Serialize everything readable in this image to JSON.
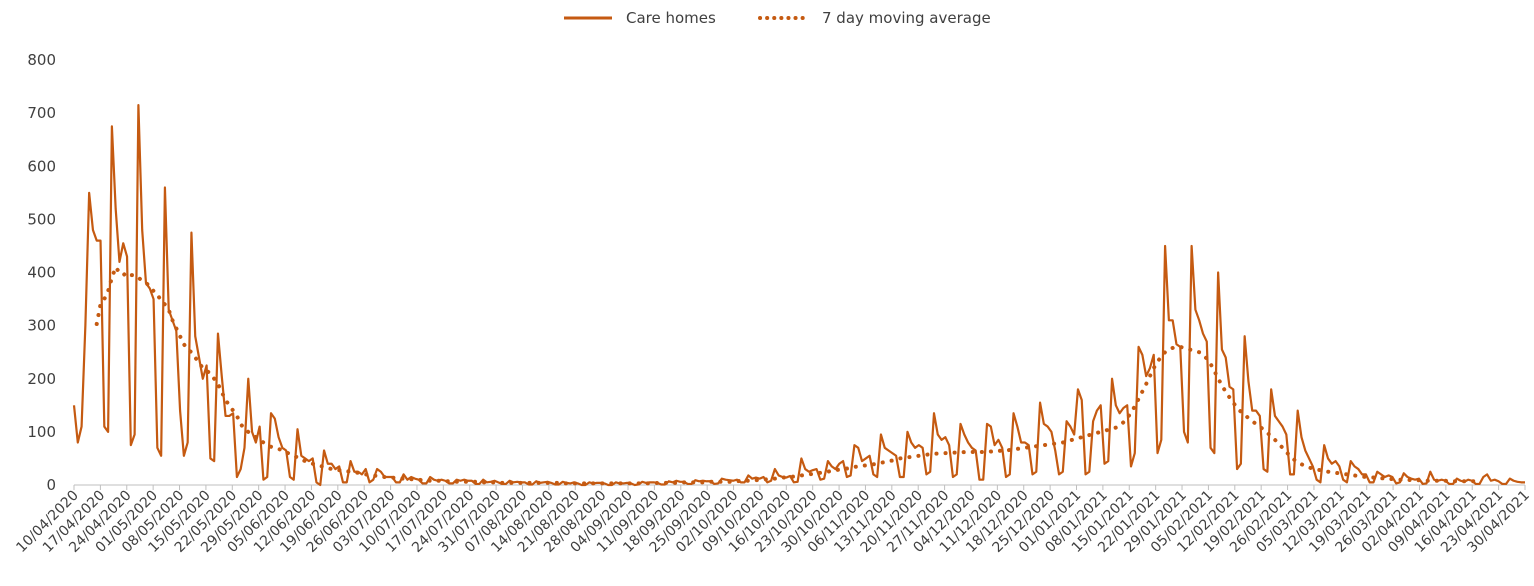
{
  "chart_data": {
    "type": "line",
    "title": "",
    "xlabel": "",
    "ylabel": "",
    "ylim": [
      0,
      800
    ],
    "y_ticks": [
      "0",
      "100",
      "200",
      "300",
      "400",
      "500",
      "600",
      "700",
      "800"
    ],
    "grid": false,
    "legend_placement": "top-center",
    "color": "#C55A11",
    "start_date": "10/04/2020",
    "end_date": "30/04/2021",
    "x_tick_labels": [
      "10/04/2020",
      "17/04/2020",
      "24/04/2020",
      "01/05/2020",
      "08/05/2020",
      "15/05/2020",
      "22/05/2020",
      "29/05/2020",
      "05/06/2020",
      "12/06/2020",
      "19/06/2020",
      "26/06/2020",
      "03/07/2020",
      "10/07/2020",
      "17/07/2020",
      "24/07/2020",
      "31/07/2020",
      "07/08/2020",
      "14/08/2020",
      "21/08/2020",
      "28/08/2020",
      "04/09/2020",
      "11/09/2020",
      "18/09/2020",
      "25/09/2020",
      "02/10/2020",
      "09/10/2020",
      "16/10/2020",
      "23/10/2020",
      "30/10/2020",
      "06/11/2020",
      "13/11/2020",
      "20/11/2020",
      "27/11/2020",
      "04/12/2020",
      "11/12/2020",
      "18/12/2020",
      "25/12/2020",
      "01/01/2021",
      "08/01/2021",
      "15/01/2021",
      "22/01/2021",
      "29/01/2021",
      "05/02/2021",
      "12/02/2021",
      "19/02/2021",
      "26/02/2021",
      "05/03/2021",
      "12/03/2021",
      "19/03/2021",
      "26/03/2021",
      "02/04/2021",
      "09/04/2021",
      "16/04/2021",
      "23/04/2021",
      "30/04/2021"
    ],
    "series": [
      {
        "name": "Care homes",
        "style": "solid",
        "values": [
          150,
          80,
          110,
          300,
          550,
          480,
          460,
          460,
          110,
          100,
          675,
          520,
          420,
          455,
          430,
          75,
          95,
          715,
          480,
          380,
          370,
          350,
          70,
          55,
          560,
          330,
          310,
          290,
          140,
          55,
          80,
          475,
          280,
          240,
          200,
          225,
          50,
          45,
          285,
          205,
          130,
          130,
          135,
          15,
          30,
          70,
          200,
          100,
          80,
          110,
          10,
          15,
          135,
          125,
          90,
          70,
          65,
          15,
          10,
          105,
          55,
          50,
          45,
          50,
          5,
          0,
          65,
          40,
          40,
          30,
          35,
          5,
          5,
          45,
          25,
          25,
          20,
          30,
          5,
          10,
          30,
          25,
          15,
          15,
          15,
          5,
          5,
          20,
          10,
          15,
          12,
          10,
          3,
          3,
          15,
          10,
          8,
          10,
          8,
          3,
          3,
          10,
          8,
          10,
          8,
          8,
          2,
          2,
          10,
          5,
          6,
          8,
          5,
          2,
          2,
          8,
          5,
          6,
          5,
          5,
          1,
          1,
          7,
          4,
          5,
          6,
          4,
          1,
          1,
          6,
          4,
          3,
          5,
          3,
          0,
          0,
          5,
          3,
          4,
          4,
          3,
          0,
          0,
          5,
          3,
          3,
          4,
          3,
          0,
          1,
          6,
          4,
          5,
          5,
          4,
          1,
          1,
          7,
          5,
          8,
          6,
          6,
          2,
          2,
          9,
          7,
          8,
          7,
          7,
          2,
          3,
          12,
          10,
          9,
          8,
          10,
          5,
          5,
          18,
          12,
          14,
          12,
          15,
          5,
          8,
          30,
          18,
          15,
          14,
          17,
          5,
          6,
          50,
          30,
          25,
          28,
          30,
          10,
          12,
          45,
          35,
          30,
          40,
          45,
          15,
          18,
          75,
          70,
          45,
          50,
          55,
          20,
          15,
          95,
          70,
          65,
          60,
          55,
          15,
          15,
          100,
          80,
          70,
          75,
          70,
          20,
          25,
          135,
          95,
          85,
          90,
          75,
          15,
          20,
          115,
          95,
          80,
          70,
          65,
          10,
          10,
          115,
          110,
          75,
          85,
          70,
          15,
          20,
          135,
          110,
          80,
          80,
          75,
          20,
          25,
          155,
          115,
          110,
          100,
          65,
          20,
          25,
          120,
          110,
          95,
          180,
          160,
          20,
          25,
          120,
          140,
          150,
          40,
          45,
          200,
          150,
          135,
          145,
          150,
          35,
          60,
          260,
          245,
          205,
          220,
          245,
          60,
          85,
          450,
          310,
          310,
          265,
          260,
          100,
          80,
          450,
          330,
          310,
          285,
          270,
          70,
          60,
          400,
          255,
          240,
          185,
          180,
          30,
          40,
          280,
          195,
          140,
          140,
          130,
          30,
          25,
          180,
          130,
          120,
          110,
          95,
          20,
          20,
          140,
          90,
          65,
          50,
          35,
          10,
          5,
          75,
          50,
          40,
          45,
          35,
          10,
          5,
          45,
          35,
          30,
          20,
          20,
          5,
          5,
          25,
          20,
          15,
          18,
          15,
          3,
          5,
          22,
          15,
          12,
          10,
          12,
          2,
          3,
          25,
          10,
          8,
          10,
          8,
          2,
          2,
          12,
          8,
          6,
          10,
          8,
          2,
          2,
          15,
          20,
          8,
          10,
          7,
          2,
          2,
          12,
          8,
          6,
          5,
          5
        ]
      },
      {
        "name": "7 day moving average",
        "style": "dotted",
        "values": [
          null,
          null,
          null,
          null,
          null,
          null,
          303,
          340,
          350,
          365,
          390,
          410,
          400,
          395,
          400,
          395,
          395,
          390,
          385,
          380,
          375,
          365,
          360,
          345,
          340,
          330,
          310,
          295,
          280,
          265,
          255,
          250,
          240,
          230,
          220,
          215,
          210,
          200,
          190,
          175,
          160,
          150,
          140,
          130,
          115,
          105,
          100,
          95,
          90,
          85,
          80,
          75,
          72,
          70,
          68,
          65,
          62,
          58,
          55,
          52,
          48,
          45,
          42,
          40,
          38,
          36,
          34,
          32,
          30,
          30,
          28,
          27,
          26,
          25,
          24,
          23,
          22,
          20,
          19,
          18,
          17,
          16,
          15,
          14,
          14,
          13,
          12,
          12,
          11,
          11,
          10,
          10,
          9,
          9,
          8,
          8,
          8,
          8,
          7,
          7,
          7,
          6,
          6,
          6,
          6,
          6,
          6,
          5,
          5,
          5,
          5,
          5,
          5,
          4,
          4,
          4,
          4,
          4,
          4,
          4,
          4,
          4,
          4,
          4,
          4,
          4,
          4,
          4,
          4,
          3,
          3,
          3,
          3,
          3,
          3,
          3,
          3,
          3,
          3,
          3,
          3,
          3,
          3,
          3,
          3,
          3,
          3,
          3,
          3,
          3,
          3,
          3,
          3,
          3,
          4,
          4,
          4,
          4,
          4,
          4,
          4,
          5,
          5,
          5,
          5,
          5,
          5,
          5,
          6,
          6,
          6,
          6,
          6,
          6,
          7,
          7,
          8,
          8,
          8,
          9,
          9,
          10,
          10,
          11,
          12,
          12,
          13,
          14,
          14,
          15,
          16,
          17,
          18,
          19,
          20,
          21,
          22,
          23,
          24,
          25,
          27,
          28,
          29,
          30,
          31,
          32,
          34,
          35,
          36,
          37,
          38,
          39,
          40,
          42,
          43,
          45,
          46,
          48,
          50,
          51,
          52,
          53,
          54,
          55,
          56,
          57,
          58,
          59,
          59,
          60,
          60,
          60,
          61,
          61,
          61,
          62,
          62,
          62,
          62,
          62,
          62,
          63,
          63,
          64,
          64,
          65,
          65,
          66,
          67,
          68,
          69,
          70,
          71,
          72,
          73,
          74,
          75,
          76,
          77,
          78,
          79,
          80,
          82,
          84,
          86,
          88,
          90,
          92,
          94,
          96,
          98,
          100,
          102,
          104,
          106,
          108,
          112,
          118,
          126,
          136,
          148,
          162,
          176,
          190,
          205,
          220,
          232,
          242,
          250,
          255,
          258,
          260,
          260,
          258,
          256,
          254,
          252,
          250,
          245,
          238,
          228,
          215,
          200,
          188,
          175,
          165,
          155,
          145,
          138,
          132,
          126,
          120,
          115,
          110,
          104,
          98,
          92,
          85,
          78,
          70,
          62,
          55,
          48,
          43,
          39,
          36,
          33,
          31,
          29,
          28,
          26,
          25,
          24,
          23,
          22,
          21,
          20,
          19,
          18,
          17,
          16,
          15,
          14,
          14,
          13,
          13,
          12,
          12,
          11,
          11,
          10,
          10,
          10,
          9,
          9,
          9,
          9,
          8,
          8,
          8,
          8,
          8,
          8,
          7,
          7,
          7,
          7,
          7,
          7,
          7,
          7
        ]
      }
    ]
  }
}
